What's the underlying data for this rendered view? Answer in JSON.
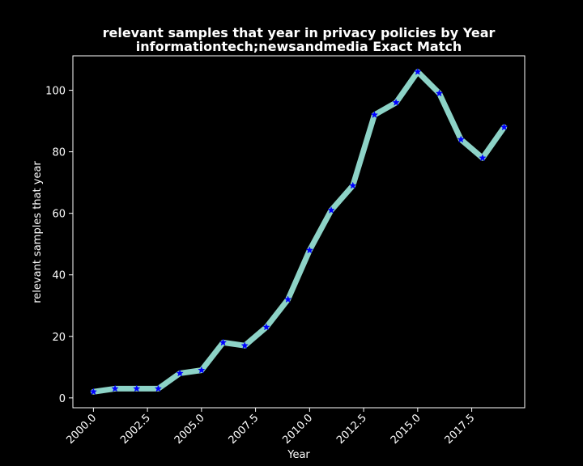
{
  "chart_data": {
    "type": "line",
    "title": "relevant samples that year in privacy policies by Year",
    "subtitle": "informationtech;newsandmedia Exact Match",
    "xlabel": "Year",
    "ylabel": "relevant samples that year",
    "xlim": [
      1999.05,
      2019.95
    ],
    "ylim": [
      -3.2,
      111.2
    ],
    "xticks": [
      2000.0,
      2002.5,
      2005.0,
      2007.5,
      2010.0,
      2012.5,
      2015.0,
      2017.5
    ],
    "xtick_labels": [
      "2000.0",
      "2002.5",
      "2005.0",
      "2007.5",
      "2010.0",
      "2012.5",
      "2015.0",
      "2017.5"
    ],
    "yticks": [
      0,
      20,
      40,
      60,
      80,
      100
    ],
    "ytick_labels": [
      "0",
      "20",
      "40",
      "60",
      "80",
      "100"
    ],
    "grid": false,
    "series": [
      {
        "x": [
          2000,
          2001,
          2002,
          2003,
          2004,
          2005,
          2006,
          2007,
          2008,
          2009,
          2010,
          2011,
          2012,
          2013,
          2014,
          2015,
          2016,
          2017,
          2018,
          2019
        ],
        "values": [
          2,
          3,
          3,
          3,
          8,
          9,
          18,
          17,
          23,
          32,
          48,
          61,
          69,
          92,
          96,
          106,
          99,
          84,
          78,
          88
        ],
        "line_color": "#8dd3c7",
        "marker": "star",
        "marker_color": "#0000ff"
      }
    ],
    "colors": {
      "background": "#000000",
      "axes": "#ffffff",
      "text": "#ffffff"
    }
  }
}
